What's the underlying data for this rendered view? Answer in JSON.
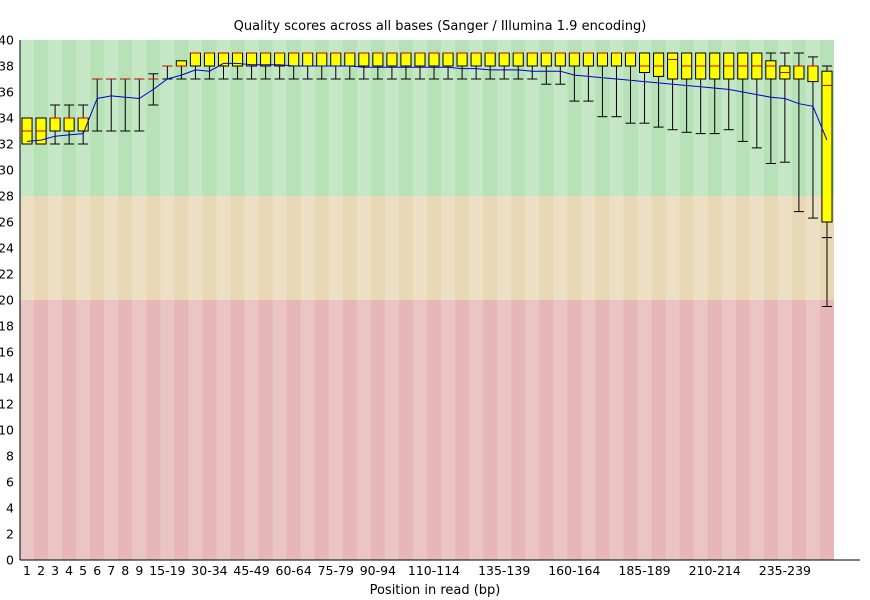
{
  "chart_data": {
    "type": "box",
    "title": "Quality scores across all bases (Sanger / Illumina 1.9 encoding)",
    "xlabel": "Position in read (bp)",
    "ylabel": "",
    "ylim": [
      0,
      40
    ],
    "y_ticks": [
      0,
      2,
      4,
      6,
      8,
      10,
      12,
      14,
      16,
      18,
      20,
      22,
      24,
      26,
      28,
      30,
      32,
      34,
      36,
      38,
      40
    ],
    "background_bands": [
      {
        "from": 28,
        "to": 40,
        "color": "#b7e2b7"
      },
      {
        "from": 20,
        "to": 28,
        "color": "#e9d8b5"
      },
      {
        "from": 0,
        "to": 20,
        "color": "#e6b7b6"
      }
    ],
    "box_color": "#ffff00",
    "median_color": "#cc0000",
    "mean_line_color": "#0000cc",
    "categories": [
      "1",
      "2",
      "3",
      "4",
      "5",
      "6",
      "7",
      "8",
      "9",
      "10-14",
      "15-19",
      "20-24",
      "25-29",
      "30-34",
      "35-39",
      "40-44",
      "45-49",
      "50-54",
      "55-59",
      "60-64",
      "65-69",
      "70-74",
      "75-79",
      "80-84",
      "85-89",
      "90-94",
      "95-99",
      "100-104",
      "105-109",
      "110-114",
      "115-119",
      "120-124",
      "125-129",
      "130-134",
      "135-139",
      "140-144",
      "145-149",
      "150-154",
      "155-159",
      "160-164",
      "165-169",
      "170-174",
      "175-179",
      "180-184",
      "185-189",
      "190-194",
      "195-199",
      "200-204",
      "205-209",
      "210-214",
      "215-219",
      "220-224",
      "225-229",
      "230-234",
      "235-239",
      "240-244",
      "245-249",
      "250-251"
    ],
    "x_tick_labels_shown": [
      "1",
      "2",
      "3",
      "4",
      "5",
      "6",
      "7",
      "8",
      "9",
      "15-19",
      "30-34",
      "45-49",
      "60-64",
      "75-79",
      "90-94",
      "110-114",
      "135-139",
      "160-164",
      "185-189",
      "210-214",
      "235-239"
    ],
    "mean": [
      32.2,
      32.3,
      32.6,
      32.7,
      32.8,
      35.5,
      35.7,
      35.6,
      35.5,
      36.2,
      37.0,
      37.3,
      37.7,
      37.6,
      38.2,
      38.2,
      38.1,
      38.1,
      38.1,
      38.0,
      38.0,
      38.0,
      38.0,
      38.0,
      37.9,
      37.9,
      37.9,
      37.9,
      37.9,
      37.9,
      37.9,
      37.8,
      37.8,
      37.7,
      37.7,
      37.7,
      37.6,
      37.6,
      37.6,
      37.3,
      37.2,
      37.1,
      37.0,
      36.9,
      36.8,
      36.7,
      36.6,
      36.5,
      36.4,
      36.3,
      36.2,
      36.0,
      35.8,
      35.6,
      35.5,
      35.1,
      34.9,
      32.3
    ],
    "median": [
      33,
      33,
      34,
      34,
      34,
      37,
      37,
      37,
      37,
      37,
      38,
      38,
      39,
      39,
      39,
      39,
      39,
      39,
      39,
      39,
      39,
      39,
      39,
      39,
      39,
      39,
      39,
      39,
      39,
      39,
      39,
      39,
      39,
      39,
      39,
      39,
      39,
      39,
      39,
      39,
      39,
      39,
      39,
      39,
      38,
      38,
      38.5,
      38,
      38,
      38,
      38,
      38,
      38,
      38,
      37.5,
      38,
      38,
      36.5
    ],
    "q1": [
      32,
      32,
      33,
      33,
      33,
      37,
      37,
      37,
      37,
      37,
      38,
      38,
      38,
      38,
      38,
      38,
      38,
      38,
      38,
      38,
      38,
      38,
      38,
      38,
      38,
      38,
      38,
      38,
      38,
      38,
      38,
      38,
      38,
      38,
      38,
      38,
      38,
      38,
      38,
      38,
      38,
      38,
      38,
      38,
      37.5,
      37.2,
      37,
      37,
      37,
      37,
      37,
      37,
      37,
      37,
      37,
      37,
      36.8,
      26
    ],
    "q3": [
      34,
      34,
      34,
      34,
      34,
      37,
      37,
      37,
      37,
      37,
      38,
      38.4,
      39,
      39,
      39,
      39,
      39,
      39,
      39,
      39,
      39,
      39,
      39,
      39,
      39,
      39,
      39,
      39,
      39,
      39,
      39,
      39,
      39,
      39,
      39,
      39,
      39,
      39,
      39,
      39,
      39,
      39,
      39,
      39,
      39,
      39,
      39,
      39,
      39,
      39,
      39,
      39,
      39,
      38.4,
      38,
      38,
      38,
      37.6
    ],
    "whisker_low": [
      32,
      32,
      32,
      32,
      32,
      33,
      33,
      33,
      33,
      35,
      37,
      37,
      37,
      37,
      37,
      37,
      37,
      37,
      37,
      37,
      37,
      37,
      37,
      37,
      37,
      37,
      37,
      37,
      37,
      37,
      37,
      37,
      37,
      37,
      37,
      37,
      37,
      36.6,
      36.6,
      35.3,
      35.3,
      34.1,
      34.1,
      33.6,
      33.6,
      33.3,
      33.1,
      32.9,
      32.8,
      32.8,
      33.1,
      32.2,
      31.7,
      30.5,
      30.6,
      26.8,
      26.3,
      24.8
    ],
    "whisker_high": [
      34,
      34,
      35,
      35,
      35,
      37,
      37,
      37,
      37,
      37.4,
      38,
      38,
      38,
      39,
      39,
      39,
      39,
      39,
      39,
      39,
      39,
      39,
      39,
      39,
      39,
      39,
      39,
      39,
      39,
      39,
      39,
      39,
      39,
      39,
      39,
      39,
      39,
      39,
      39,
      39,
      39,
      39,
      39,
      39,
      39,
      39,
      39,
      39,
      39,
      39,
      39,
      39,
      39,
      39,
      39,
      39,
      38.7,
      38
    ],
    "extra_low_whisker_last": 19.5
  }
}
